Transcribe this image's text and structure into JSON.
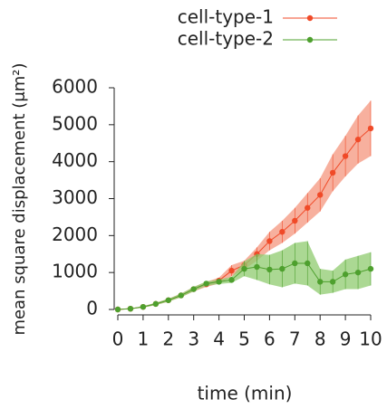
{
  "chart_data": {
    "type": "line",
    "x_label": "time (min)",
    "y_label": "mean square displacement (μm²)",
    "x": [
      0,
      0.5,
      1,
      1.5,
      2,
      2.5,
      3,
      3.5,
      4,
      4.5,
      5,
      5.5,
      6,
      6.5,
      7,
      7.5,
      8,
      8.5,
      9,
      9.5,
      10
    ],
    "series": [
      {
        "name": "cell-type-1",
        "color": "#f04a28",
        "band_color": "#f4957e",
        "values": [
          0,
          20,
          70,
          150,
          250,
          380,
          550,
          680,
          780,
          1050,
          1200,
          1500,
          1850,
          2100,
          2400,
          2750,
          3100,
          3700,
          4150,
          4600,
          4900
        ],
        "error": [
          0,
          10,
          20,
          30,
          40,
          50,
          60,
          70,
          80,
          150,
          120,
          180,
          250,
          300,
          350,
          400,
          450,
          500,
          550,
          650,
          750
        ]
      },
      {
        "name": "cell-type-2",
        "color": "#4ea02e",
        "band_color": "#8fcb6f",
        "values": [
          0,
          20,
          70,
          150,
          250,
          380,
          550,
          700,
          750,
          800,
          1100,
          1150,
          1080,
          1100,
          1250,
          1250,
          750,
          750,
          950,
          1000,
          1100
        ],
        "error": [
          0,
          10,
          20,
          30,
          40,
          50,
          60,
          60,
          60,
          80,
          200,
          350,
          400,
          500,
          550,
          600,
          350,
          300,
          400,
          450,
          450
        ]
      }
    ],
    "xlim": [
      0,
      10
    ],
    "xticks": [
      0,
      1,
      2,
      3,
      4,
      5,
      6,
      7,
      8,
      9,
      10
    ],
    "ylim": [
      0,
      6000
    ],
    "yticks": [
      0,
      1000,
      2000,
      3000,
      4000,
      5000,
      6000
    ],
    "legend": "upper right"
  }
}
